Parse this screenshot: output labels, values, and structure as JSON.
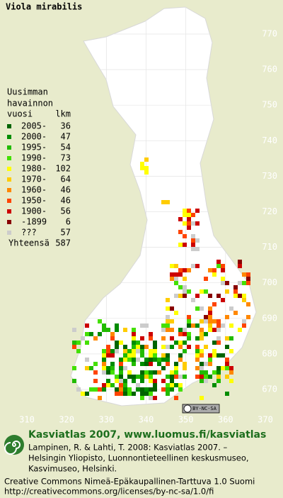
{
  "title": "Viola mirabilis",
  "legend": {
    "heading": [
      "Uusimman",
      "havainnon"
    ],
    "col_year": "vuosi",
    "col_count": "lkm",
    "items": [
      {
        "label": "2005-",
        "count": 36,
        "color": "#006400"
      },
      {
        "label": "2000-",
        "count": 47,
        "color": "#008c00"
      },
      {
        "label": "1995-",
        "count": 54,
        "color": "#22bb00"
      },
      {
        "label": "1990-",
        "count": 73,
        "color": "#44e000"
      },
      {
        "label": "1980-",
        "count": 102,
        "color": "#ffff00"
      },
      {
        "label": "1970-",
        "count": 64,
        "color": "#ffcc00"
      },
      {
        "label": "1960-",
        "count": 46,
        "color": "#ff8800"
      },
      {
        "label": "1950-",
        "count": 46,
        "color": "#ff4400"
      },
      {
        "label": "1900-",
        "count": 56,
        "color": "#cc0000"
      },
      {
        "label": "-1899",
        "count": 6,
        "color": "#880000"
      },
      {
        "label": "???",
        "count": 57,
        "color": "#cccccc"
      }
    ],
    "total_label": "Yhteensä",
    "total": 587
  },
  "map": {
    "xticks": [
      310,
      320,
      330,
      340,
      350,
      360,
      370
    ],
    "yticks": [
      670,
      680,
      690,
      700,
      710,
      720,
      730,
      740,
      750,
      760,
      770
    ]
  },
  "badge": "BY-NC-SA",
  "footer": {
    "headline": "Kasviatlas 2007, www.luomus.fi/kasviatlas",
    "citation": [
      "Lampinen, R. & Lahti, T. 2008: Kasviatlas 2007. –",
      "Helsingin Yliopisto, Luonnontieteellinen keskusmuseo,",
      "Kasvimuseo, Helsinki."
    ],
    "license": [
      "Creative Commons Nimeä-Epäkaupallinen-Tarttuva 1.0 Suomi",
      "http://creativecommons.org/licenses/by-nc-sa/1.0/fi"
    ]
  }
}
